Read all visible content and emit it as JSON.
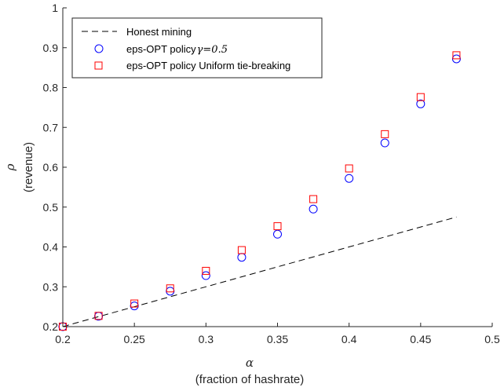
{
  "chart_data": {
    "type": "scatter",
    "xlabel_symbol": "α",
    "xlabel": "(fraction of hashrate)",
    "ylabel_symbol": "ρ",
    "ylabel": "(revenue)",
    "xlim": [
      0.2,
      0.5
    ],
    "ylim": [
      0.2,
      1.0
    ],
    "x_ticks": [
      "0.2",
      "0.25",
      "0.3",
      "0.35",
      "0.4",
      "0.45",
      "0.5"
    ],
    "y_ticks": [
      "0.2",
      "0.3",
      "0.4",
      "0.5",
      "0.6",
      "0.7",
      "0.8",
      "0.9",
      "1"
    ],
    "grid": false,
    "legend_position": "top-left",
    "series": [
      {
        "name": "Honest mining",
        "style": "dashed-line",
        "color": "#000000",
        "x": [
          0.2,
          0.475
        ],
        "y": [
          0.2,
          0.475
        ]
      },
      {
        "name": "eps-OPT policy",
        "name_gamma": "γ=0.5",
        "style": "circle",
        "color": "#0000ff",
        "x": [
          0.2,
          0.225,
          0.25,
          0.275,
          0.3,
          0.325,
          0.35,
          0.375,
          0.4,
          0.425,
          0.45,
          0.475
        ],
        "y": [
          0.2,
          0.226,
          0.252,
          0.289,
          0.328,
          0.374,
          0.432,
          0.495,
          0.572,
          0.661,
          0.759,
          0.872
        ]
      },
      {
        "name": "eps-OPT policy Uniform tie-breaking",
        "style": "square",
        "color": "#ff0000",
        "x": [
          0.2,
          0.225,
          0.25,
          0.275,
          0.3,
          0.325,
          0.35,
          0.375,
          0.4,
          0.425,
          0.45,
          0.475
        ],
        "y": [
          0.2,
          0.227,
          0.258,
          0.296,
          0.34,
          0.392,
          0.452,
          0.52,
          0.597,
          0.683,
          0.776,
          0.881
        ]
      }
    ]
  }
}
